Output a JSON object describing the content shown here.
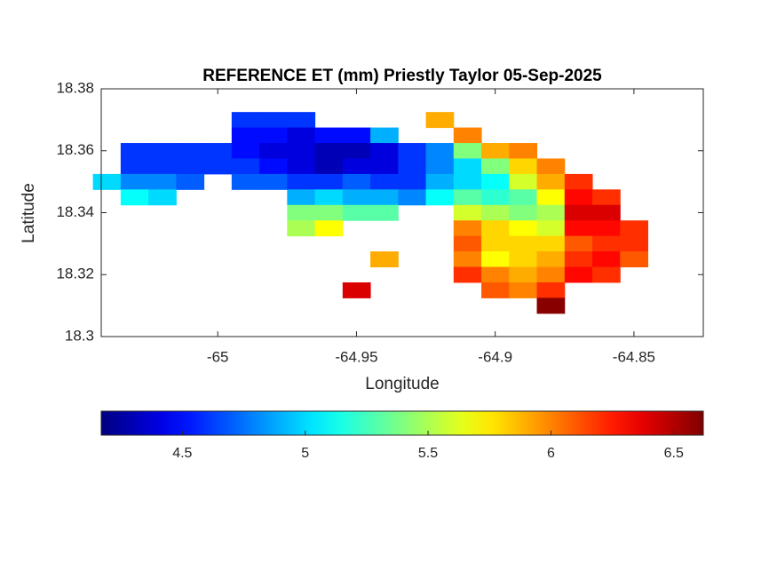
{
  "chart_data": {
    "type": "heatmap",
    "title": "REFERENCE ET (mm) Priestly Taylor 05-Sep-2025",
    "xlabel": "Longitude",
    "ylabel": "Latitude",
    "x": [
      -65.04,
      -65.03,
      -65.02,
      -65.01,
      -65.0,
      -64.99,
      -64.98,
      -64.97,
      -64.96,
      -64.95,
      -64.94,
      -64.93,
      -64.92,
      -64.91,
      -64.9,
      -64.89,
      -64.88,
      -64.87,
      -64.86,
      -64.85
    ],
    "y": [
      18.37,
      18.365,
      18.36,
      18.355,
      18.35,
      18.345,
      18.34,
      18.335,
      18.33,
      18.325,
      18.32,
      18.315,
      18.31
    ],
    "values": [
      [
        null,
        null,
        null,
        null,
        null,
        4.6,
        4.6,
        4.6,
        null,
        null,
        null,
        null,
        5.9,
        null,
        null,
        null,
        null,
        null,
        null,
        null
      ],
      [
        null,
        null,
        null,
        null,
        null,
        4.5,
        4.5,
        4.4,
        4.5,
        4.5,
        4.9,
        null,
        null,
        6.0,
        null,
        null,
        null,
        null,
        null,
        null
      ],
      [
        null,
        4.6,
        4.6,
        4.6,
        4.6,
        4.5,
        4.4,
        4.4,
        4.3,
        4.3,
        4.4,
        4.6,
        4.8,
        5.4,
        5.9,
        6.0,
        null,
        null,
        null,
        null
      ],
      [
        null,
        4.6,
        4.6,
        4.6,
        4.6,
        4.6,
        4.5,
        4.4,
        4.3,
        4.4,
        4.4,
        4.6,
        4.8,
        5.0,
        5.4,
        5.8,
        6.0,
        null,
        null,
        null
      ],
      [
        5.0,
        4.8,
        4.8,
        4.7,
        null,
        4.7,
        4.7,
        4.6,
        4.6,
        4.7,
        4.6,
        4.6,
        4.9,
        5.0,
        5.1,
        5.6,
        5.9,
        6.2,
        null,
        null
      ],
      [
        null,
        5.1,
        5.0,
        null,
        null,
        null,
        null,
        4.9,
        5.0,
        4.9,
        4.9,
        4.8,
        5.1,
        5.3,
        5.2,
        5.3,
        5.7,
        6.3,
        6.2,
        null
      ],
      [
        null,
        null,
        null,
        null,
        null,
        null,
        null,
        5.4,
        5.4,
        5.3,
        5.3,
        null,
        null,
        5.6,
        5.5,
        5.4,
        5.5,
        6.4,
        6.4,
        null
      ],
      [
        null,
        null,
        null,
        null,
        null,
        null,
        null,
        5.5,
        5.7,
        null,
        null,
        null,
        null,
        6.0,
        5.8,
        5.7,
        5.6,
        6.3,
        6.3,
        6.2
      ],
      [
        null,
        null,
        null,
        null,
        null,
        null,
        null,
        null,
        null,
        null,
        null,
        null,
        null,
        6.1,
        5.8,
        5.8,
        5.8,
        6.1,
        6.2,
        6.2
      ],
      [
        null,
        null,
        null,
        null,
        null,
        null,
        null,
        null,
        null,
        null,
        5.9,
        null,
        null,
        6.0,
        5.7,
        5.8,
        5.9,
        6.2,
        6.3,
        6.1
      ],
      [
        null,
        null,
        null,
        null,
        null,
        null,
        null,
        null,
        null,
        null,
        null,
        null,
        null,
        6.2,
        6.0,
        5.9,
        6.0,
        6.3,
        6.2,
        null
      ],
      [
        null,
        null,
        null,
        null,
        null,
        null,
        null,
        null,
        null,
        6.4,
        null,
        null,
        null,
        null,
        6.1,
        6.0,
        6.2,
        null,
        null,
        null
      ],
      [
        null,
        null,
        null,
        null,
        null,
        null,
        null,
        null,
        null,
        null,
        null,
        null,
        null,
        null,
        null,
        null,
        6.6,
        null,
        null,
        null
      ]
    ],
    "xlim": [
      -65.042,
      -64.825
    ],
    "ylim": [
      18.3,
      18.38
    ],
    "xticks": [
      -65,
      -64.95,
      -64.9,
      -64.85
    ],
    "yticks": [
      18.3,
      18.32,
      18.34,
      18.36,
      18.38
    ],
    "colormap": "jet",
    "clim": [
      4.17,
      6.62
    ],
    "cticks": [
      4.5,
      5,
      5.5,
      6,
      6.5
    ]
  }
}
